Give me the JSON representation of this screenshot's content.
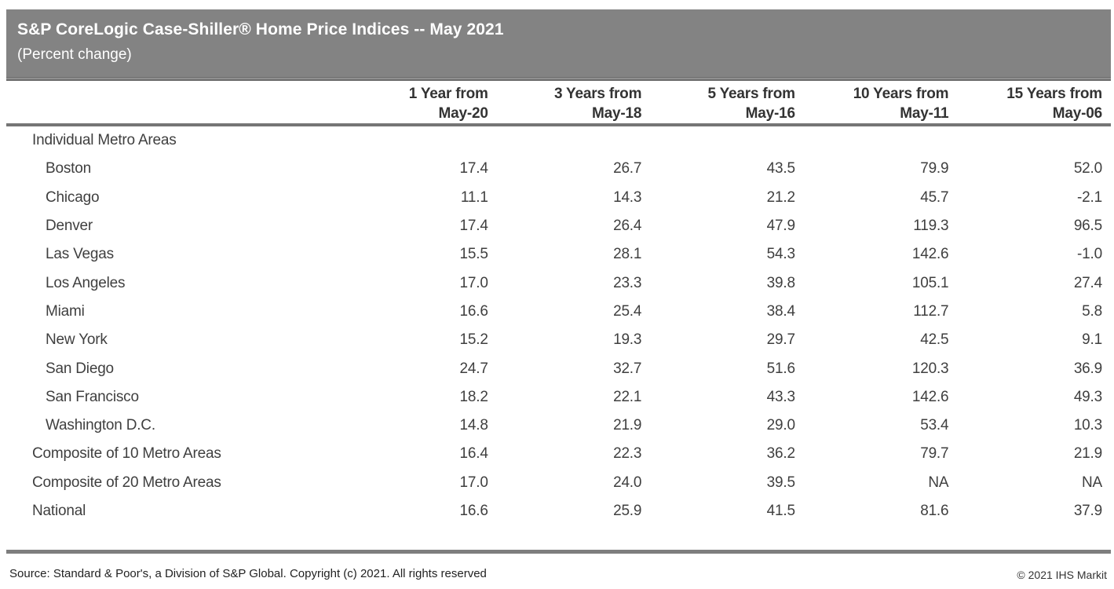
{
  "header": {
    "title": "S&P CoreLogic Case-Shiller® Home Price Indices -- May 2021",
    "subtitle": "(Percent change)"
  },
  "table": {
    "column_headers": [
      {
        "line1": "1 Year from",
        "line2": "May-20"
      },
      {
        "line1": "3 Years from",
        "line2": "May-18"
      },
      {
        "line1": "5 Years from",
        "line2": "May-16"
      },
      {
        "line1": "10 Years from",
        "line2": "May-11"
      },
      {
        "line1": "15 Years from",
        "line2": "May-06"
      }
    ],
    "rows": [
      {
        "label": "Individual Metro Areas",
        "indent": false,
        "section": true,
        "values": [
          "",
          "",
          "",
          "",
          ""
        ]
      },
      {
        "label": "Boston",
        "indent": true,
        "section": false,
        "values": [
          "17.4",
          "26.7",
          "43.5",
          "79.9",
          "52.0"
        ]
      },
      {
        "label": "Chicago",
        "indent": true,
        "section": false,
        "values": [
          "11.1",
          "14.3",
          "21.2",
          "45.7",
          "-2.1"
        ]
      },
      {
        "label": "Denver",
        "indent": true,
        "section": false,
        "values": [
          "17.4",
          "26.4",
          "47.9",
          "119.3",
          "96.5"
        ]
      },
      {
        "label": "Las Vegas",
        "indent": true,
        "section": false,
        "values": [
          "15.5",
          "28.1",
          "54.3",
          "142.6",
          "-1.0"
        ]
      },
      {
        "label": "Los Angeles",
        "indent": true,
        "section": false,
        "values": [
          "17.0",
          "23.3",
          "39.8",
          "105.1",
          "27.4"
        ]
      },
      {
        "label": "Miami",
        "indent": true,
        "section": false,
        "values": [
          "16.6",
          "25.4",
          "38.4",
          "112.7",
          "5.8"
        ]
      },
      {
        "label": "New York",
        "indent": true,
        "section": false,
        "values": [
          "15.2",
          "19.3",
          "29.7",
          "42.5",
          "9.1"
        ]
      },
      {
        "label": "San Diego",
        "indent": true,
        "section": false,
        "values": [
          "24.7",
          "32.7",
          "51.6",
          "120.3",
          "36.9"
        ]
      },
      {
        "label": "San Francisco",
        "indent": true,
        "section": false,
        "values": [
          "18.2",
          "22.1",
          "43.3",
          "142.6",
          "49.3"
        ]
      },
      {
        "label": "Washington D.C.",
        "indent": true,
        "section": false,
        "values": [
          "14.8",
          "21.9",
          "29.0",
          "53.4",
          "10.3"
        ]
      },
      {
        "label": "Composite of 10 Metro Areas",
        "indent": false,
        "section": false,
        "values": [
          "16.4",
          "22.3",
          "36.2",
          "79.7",
          "21.9"
        ]
      },
      {
        "label": "Composite of 20 Metro Areas",
        "indent": false,
        "section": false,
        "values": [
          "17.0",
          "24.0",
          "39.5",
          "NA",
          "NA"
        ]
      },
      {
        "label": "National",
        "indent": false,
        "section": false,
        "values": [
          "16.6",
          "25.9",
          "41.5",
          "81.6",
          "37.9"
        ]
      }
    ]
  },
  "footer": {
    "source": "Source: Standard & Poor's, a Division of S&P Global. Copyright (c) 2021. All rights reserved",
    "copyright": "© 2021 IHS Markit"
  },
  "colors": {
    "header_bar": "#838383",
    "rule": "#757575",
    "text": "#3f3f3f"
  }
}
